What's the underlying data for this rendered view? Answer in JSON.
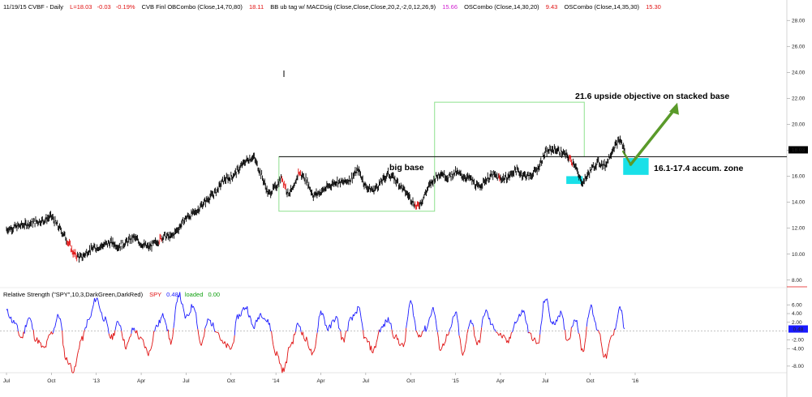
{
  "header": {
    "date_symbol": "11/19/15  CVBF - Daily",
    "last": "L=18.03",
    "change": "-0.03",
    "change_pct": "-0.19%",
    "study1_label": "CVB Finl  OBCombo (Close,14,70,80)",
    "study1_value": "18.11",
    "study2_label": "BB ub tag w/ MACDsig (Close,Close,Close,20,2,-2,0,12,26,9)",
    "study2_value": "15.66",
    "study3_label": "OSCombo (Close,14,30,20)",
    "study3_value": "9.43",
    "study4_label": "OSCombo (Close,14,35,30)",
    "study4_value": "15.30"
  },
  "rs_header": {
    "label": "Relative Strength (\"SPY\",10,3,DarkGreen,DarkRed)",
    "spy_label": "SPY",
    "spy_value": "0.48",
    "loaded_label": "loaded",
    "loaded_value": "0.00"
  },
  "annotations": {
    "big_base": "big base",
    "objective": "21.6 upside objective on stacked base",
    "accum_zone": "16.1-17.4 accum. zone"
  },
  "colors": {
    "price_bar": "#000000",
    "rs_up": "#1a1aff",
    "rs_down": "#e01010",
    "base_box": "#8ee08e",
    "accum_fill": "#19e0e8",
    "arrow": "#5a9a2a",
    "last_badge_bg": "#000000",
    "rs_badge_bg": "#1a1aff"
  },
  "chart_data": [
    {
      "type": "line",
      "title": "CVBF - Daily",
      "price_axis": {
        "ticks": [
          "28.00",
          "26.00",
          "24.00",
          "22.00",
          "20.00",
          "18.00",
          "16.00",
          "14.00",
          "12.00",
          "10.00",
          "8.00"
        ],
        "range": [
          7.6,
          29.2
        ]
      },
      "time_axis": {
        "labels": [
          "Jul",
          "Oct",
          "'13",
          "Apr",
          "Jul",
          "Oct",
          "'14",
          "Apr",
          "Jul",
          "Oct",
          "'15",
          "Apr",
          "Jul",
          "Oct",
          "'16"
        ],
        "t_positions": [
          0,
          3,
          6,
          9,
          12,
          15,
          18,
          21,
          24,
          27,
          30,
          33,
          36,
          39,
          42
        ]
      },
      "series": [
        {
          "values_t": [
            0,
            1,
            2,
            2.5,
            3,
            3.4,
            3.9,
            4.5,
            5,
            5.5,
            6,
            6.5,
            7,
            7.5,
            8,
            8.5,
            9,
            9.5,
            10,
            10.5,
            11,
            11.5,
            12,
            12.6,
            13,
            13.5,
            14,
            14.5,
            15,
            15.5,
            16,
            16.5,
            17,
            17.5,
            18,
            18.4,
            18.8,
            19.2,
            19.5,
            20,
            20.5,
            21,
            21.5,
            22,
            22.5,
            23,
            23.5,
            24,
            24.5,
            25,
            25.5,
            26,
            26.5,
            27,
            27.4,
            27.8,
            28.2,
            28.6,
            29,
            29.5,
            30,
            30.5,
            31,
            31.5,
            32,
            32.5,
            33,
            33.5,
            34,
            34.5,
            35,
            35.5,
            36,
            36.5,
            37,
            37.5,
            38,
            38.2,
            38.5,
            39,
            39.5,
            40,
            40.5,
            41,
            41.3
          ],
          "values": [
            11.9,
            12.2,
            12.5,
            12.6,
            12.9,
            12.2,
            11.4,
            10.0,
            9.7,
            10.3,
            10.5,
            10.7,
            10.9,
            10.6,
            10.9,
            11.3,
            10.8,
            10.5,
            10.9,
            11.4,
            11.3,
            12.0,
            12.8,
            13.2,
            13.7,
            14.3,
            14.8,
            15.7,
            15.9,
            16.5,
            17.2,
            17.5,
            16.2,
            14.6,
            15.2,
            15.9,
            14.7,
            15.0,
            16.3,
            15.8,
            14.5,
            14.8,
            15.2,
            15.6,
            15.5,
            15.8,
            16.5,
            15.2,
            14.9,
            15.5,
            16.2,
            15.7,
            15.0,
            14.3,
            13.6,
            14.2,
            15.2,
            15.8,
            16.3,
            15.9,
            16.3,
            16.0,
            15.8,
            15.1,
            15.7,
            16.1,
            15.8,
            15.9,
            16.5,
            16.1,
            16.0,
            16.6,
            17.8,
            18.1,
            17.9,
            17.5,
            16.9,
            16.0,
            15.5,
            16.4,
            17.1,
            16.8,
            18.1,
            18.8,
            18.0
          ]
        }
      ],
      "overlays": [
        {
          "name": "resistance_line",
          "y": 17.5
        },
        {
          "name": "big_base_box",
          "t": [
            18.2,
            28.6
          ],
          "y": [
            13.3,
            17.5
          ]
        },
        {
          "name": "stacked_base_box",
          "t": [
            28.6,
            38.6
          ],
          "y": [
            17.5,
            21.7
          ]
        },
        {
          "name": "accum_zone_small",
          "t": [
            37.4,
            38.5
          ],
          "y": [
            15.4,
            16.0
          ]
        },
        {
          "name": "accum_zone_big",
          "t": [
            41.2,
            42.9
          ],
          "y": [
            16.1,
            17.4
          ]
        },
        {
          "name": "last_price_badge",
          "value": "18.03"
        }
      ]
    },
    {
      "type": "line",
      "title": "Relative Strength (\"SPY\",10,3,DarkGreen,DarkRed)",
      "y_axis": {
        "ticks": [
          "6.00",
          "4.00",
          "2.00",
          "-2.00",
          "-4.00",
          "-8.00"
        ],
        "range": [
          -9.5,
          9
        ]
      },
      "zero_line": 0,
      "last_value_badge": "0.48",
      "series": [
        {
          "name": "SPY",
          "values_t": [
            0,
            0.5,
            1,
            1.5,
            2,
            2.5,
            3,
            3.5,
            4,
            4.5,
            5,
            5.5,
            6,
            6.5,
            7,
            7.5,
            8,
            8.5,
            9,
            9.5,
            10,
            10.5,
            11,
            11.5,
            12,
            12.5,
            13,
            13.5,
            14,
            14.5,
            15,
            15.5,
            16,
            16.5,
            17,
            17.5,
            18,
            18.5,
            19,
            19.5,
            20,
            20.5,
            21,
            21.5,
            22,
            22.5,
            23,
            23.5,
            24,
            24.5,
            25,
            25.5,
            26,
            26.5,
            27,
            27.5,
            28,
            28.5,
            29,
            29.5,
            30,
            30.5,
            31,
            31.5,
            32,
            32.5,
            33,
            33.5,
            34,
            34.5,
            35,
            35.5,
            36,
            36.5,
            37,
            37.5,
            38,
            38.5,
            39,
            39.5,
            40,
            40.5,
            41,
            41.3
          ],
          "values": [
            4.5,
            2.0,
            -1.5,
            3.0,
            -2.0,
            -4.0,
            -0.5,
            3.5,
            -6.5,
            -9.0,
            -2.0,
            2.5,
            7.5,
            3.0,
            -1.5,
            2.0,
            -3.5,
            0.5,
            -2.0,
            -5.0,
            1.0,
            3.5,
            -2.5,
            8.5,
            3.0,
            6.0,
            -3.0,
            2.5,
            0.5,
            -3.0,
            -4.0,
            3.5,
            5.5,
            1.0,
            4.0,
            2.0,
            -5.0,
            -9.0,
            -3.0,
            1.5,
            -2.0,
            -5.5,
            4.5,
            0.5,
            3.0,
            -2.0,
            2.5,
            5.0,
            -2.0,
            -4.5,
            0.5,
            2.5,
            -1.5,
            -3.5,
            6.5,
            -1.0,
            0.5,
            5.0,
            -4.0,
            -1.0,
            4.0,
            -5.5,
            2.5,
            -3.0,
            4.5,
            1.0,
            -1.0,
            -2.5,
            2.0,
            4.5,
            -1.0,
            -3.0,
            7.5,
            1.5,
            4.0,
            -2.0,
            3.0,
            -4.5,
            5.5,
            0.5,
            -6.0,
            -1.0,
            5.5,
            0.5
          ]
        }
      ]
    }
  ]
}
